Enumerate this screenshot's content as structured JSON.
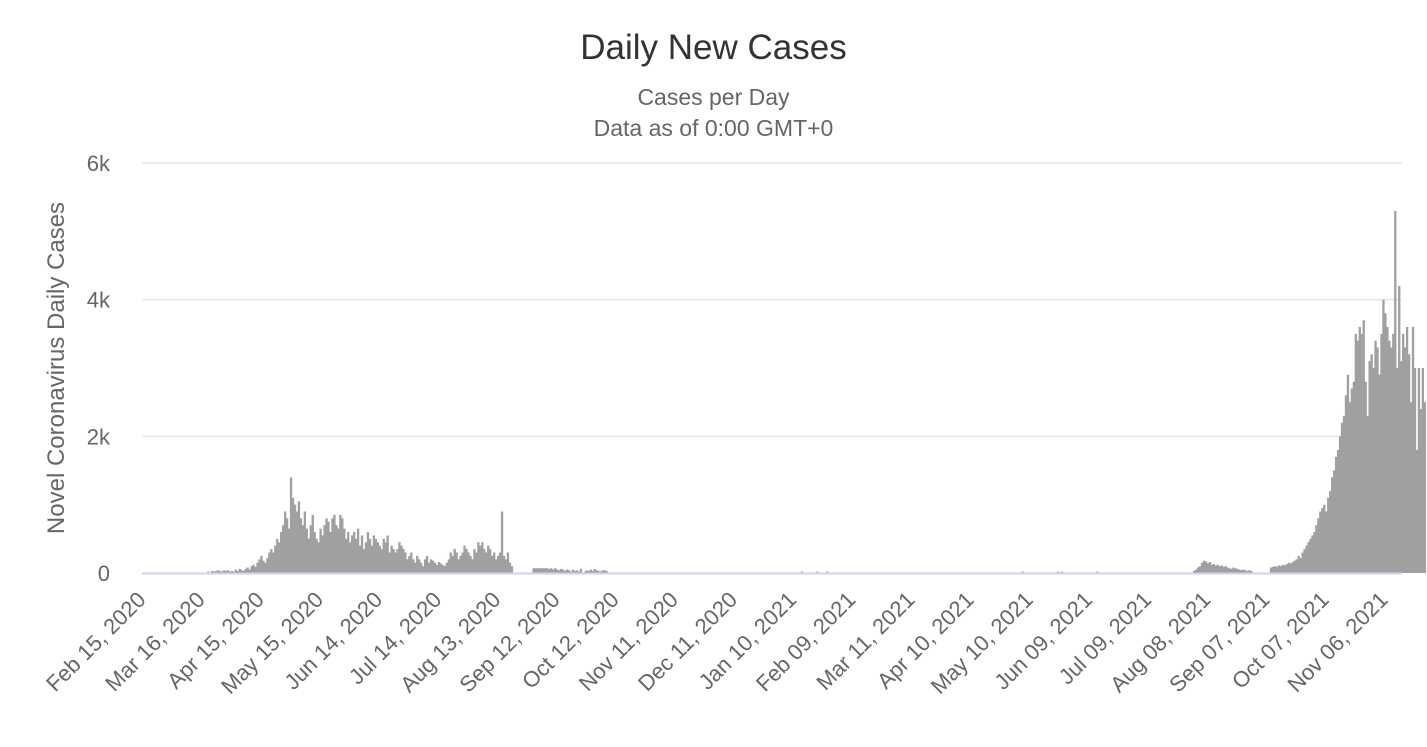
{
  "chart_data": {
    "type": "bar",
    "title": "Daily New Cases",
    "subtitle": [
      "Cases per Day",
      "Data as of 0:00 GMT+0"
    ],
    "xlabel": "",
    "ylabel": "Novel Coronavirus Daily Cases",
    "x_tick_labels": [
      "Feb 15, 2020",
      "Mar 16, 2020",
      "Apr 15, 2020",
      "May 15, 2020",
      "Jun 14, 2020",
      "Jul 14, 2020",
      "Aug 13, 2020",
      "Sep 12, 2020",
      "Oct 12, 2020",
      "Nov 11, 2020",
      "Dec 11, 2020",
      "Jan 10, 2021",
      "Feb 09, 2021",
      "Mar 11, 2021",
      "Apr 10, 2021",
      "May 10, 2021",
      "Jun 09, 2021",
      "Jul 09, 2021",
      "Aug 08, 2021",
      "Sep 07, 2021",
      "Oct 07, 2021",
      "Nov 06, 2021"
    ],
    "y_tick_labels": [
      "0",
      "2k",
      "4k",
      "6k"
    ],
    "y_ticks": [
      0,
      2000,
      4000,
      6000
    ],
    "ylim": [
      0,
      6000
    ],
    "x_start": "2020-02-15",
    "x_end": "2021-11-14",
    "grid": "horizontal",
    "legend": "none",
    "bar_color": "#a0a0a0",
    "gridline_color": "#e6e6e6",
    "axis_line_color": "#ccd6eb",
    "series": [
      {
        "segments": [
          {
            "start": "2020-03-19",
            "values": [
              20,
              0,
              30,
              20,
              30,
              40,
              30,
              20,
              40,
              30,
              40,
              20,
              30,
              20,
              50,
              30,
              60,
              40,
              30,
              60,
              80,
              50,
              100,
              120,
              90,
              150,
              200,
              250,
              180,
              150,
              220,
              300,
              350,
              300,
              400,
              500,
              450,
              600,
              700,
              900,
              800,
              650,
              1400,
              1100,
              1000,
              900,
              1050,
              800,
              700,
              900,
              650,
              500,
              700,
              850,
              600,
              500,
              450,
              650,
              550,
              700,
              800,
              750,
              600,
              800,
              850,
              700,
              650,
              850,
              800,
              650,
              500,
              600,
              450,
              550,
              600,
              500,
              650,
              400,
              550,
              350,
              450,
              600,
              500,
              400,
              550,
              500,
              450,
              400,
              350,
              500,
              450,
              550,
              300,
              400,
              350,
              300,
              350,
              450,
              400,
              350,
              300,
              200,
              250,
              300,
              200,
              150,
              250,
              200,
              150,
              100,
              200,
              250,
              150,
              200,
              180,
              150,
              120,
              160,
              140,
              120,
              100,
              150,
              200,
              300,
              250,
              350,
              300,
              200,
              250,
              300,
              400,
              350,
              300,
              250,
              200,
              350,
              300,
              450,
              400,
              450,
              350,
              300,
              400,
              350,
              250,
              300,
              200,
              250,
              300,
              900,
              250,
              200,
              300,
              150,
              100
            ]
          },
          {
            "start": "2020-08-31",
            "values": [
              70,
              70,
              70,
              70,
              70,
              70,
              70,
              70,
              60,
              70,
              50,
              70,
              50,
              40,
              60,
              50,
              30,
              50,
              40,
              20,
              50,
              30,
              40,
              20,
              60,
              0,
              20,
              40,
              30,
              50,
              30,
              60,
              40,
              30,
              20,
              40,
              40,
              30
            ]
          },
          {
            "start": "2021-01-14",
            "values": [
              20
            ]
          },
          {
            "start": "2021-01-22",
            "values": [
              20
            ]
          },
          {
            "start": "2021-01-27",
            "values": [
              20
            ]
          },
          {
            "start": "2021-05-06",
            "values": [
              20
            ]
          },
          {
            "start": "2021-05-24",
            "values": [
              20
            ]
          },
          {
            "start": "2021-05-26",
            "values": [
              20
            ]
          },
          {
            "start": "2021-06-13",
            "values": [
              20
            ]
          },
          {
            "start": "2021-08-01",
            "values": [
              30,
              50,
              80,
              100,
              150,
              180,
              170,
              140,
              160,
              120,
              130,
              110,
              120,
              100,
              110,
              90,
              100,
              80,
              70,
              60,
              80,
              70,
              60,
              50,
              40,
              50,
              40,
              30,
              40,
              30
            ]
          },
          {
            "start": "2021-09-09",
            "values": [
              80,
              90,
              100,
              90,
              110,
              100,
              120,
              110,
              130,
              150,
              140,
              160,
              180,
              200,
              250,
              220,
              300,
              350,
              400,
              450,
              500,
              550,
              600,
              700,
              800,
              900,
              950,
              1000,
              900,
              1100,
              1200,
              1400,
              1500,
              1700,
              1800,
              2000,
              2200,
              2300,
              2600,
              2900,
              2500,
              2700,
              2800,
              3500,
              3400,
              3600,
              3500,
              3700,
              2800,
              2300,
              3100,
              3200,
              3000,
              3400,
              3300,
              2900,
              3500,
              4000,
              3800,
              3600,
              3400,
              3300,
              3500,
              5300,
              3000,
              4200,
              3100,
              3500,
              3300,
              3600,
              3200,
              2500,
              3600,
              3000,
              1800,
              3000,
              2400,
              3000,
              2500
            ]
          }
        ]
      }
    ]
  }
}
